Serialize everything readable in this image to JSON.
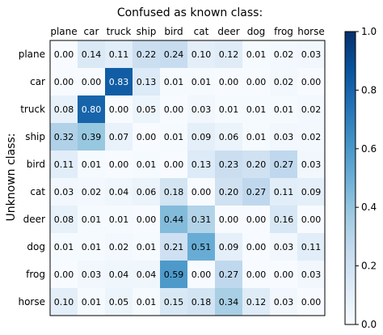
{
  "chart_data": {
    "type": "heatmap",
    "title": "Confused as known class:",
    "ylabel": "Unknown class:",
    "x_categories": [
      "plane",
      "car",
      "truck",
      "ship",
      "bird",
      "cat",
      "deer",
      "dog",
      "frog",
      "horse"
    ],
    "y_categories": [
      "plane",
      "car",
      "truck",
      "ship",
      "bird",
      "cat",
      "deer",
      "dog",
      "frog",
      "horse"
    ],
    "values": [
      [
        0.0,
        0.14,
        0.11,
        0.22,
        0.24,
        0.1,
        0.12,
        0.01,
        0.02,
        0.03
      ],
      [
        0.0,
        0.0,
        0.83,
        0.13,
        0.01,
        0.01,
        0.0,
        0.0,
        0.02,
        0.0
      ],
      [
        0.08,
        0.8,
        0.0,
        0.05,
        0.0,
        0.03,
        0.01,
        0.01,
        0.01,
        0.02
      ],
      [
        0.32,
        0.39,
        0.07,
        0.0,
        0.01,
        0.09,
        0.06,
        0.01,
        0.03,
        0.02
      ],
      [
        0.11,
        0.01,
        0.0,
        0.01,
        0.0,
        0.13,
        0.23,
        0.2,
        0.27,
        0.03
      ],
      [
        0.03,
        0.02,
        0.04,
        0.06,
        0.18,
        0.0,
        0.2,
        0.27,
        0.11,
        0.09
      ],
      [
        0.08,
        0.01,
        0.01,
        0.0,
        0.44,
        0.31,
        0.0,
        0.0,
        0.16,
        0.0
      ],
      [
        0.01,
        0.01,
        0.02,
        0.01,
        0.21,
        0.51,
        0.09,
        0.0,
        0.03,
        0.11
      ],
      [
        0.0,
        0.03,
        0.04,
        0.04,
        0.59,
        0.0,
        0.27,
        0.0,
        0.0,
        0.03
      ],
      [
        0.1,
        0.01,
        0.05,
        0.01,
        0.15,
        0.18,
        0.34,
        0.12,
        0.03,
        0.0
      ]
    ],
    "colorbar": {
      "range": [
        0.0,
        1.0
      ],
      "ticks": [
        "0.0",
        "0.2",
        "0.4",
        "0.6",
        "0.8",
        "1.0"
      ],
      "colormap": "Blues"
    }
  }
}
